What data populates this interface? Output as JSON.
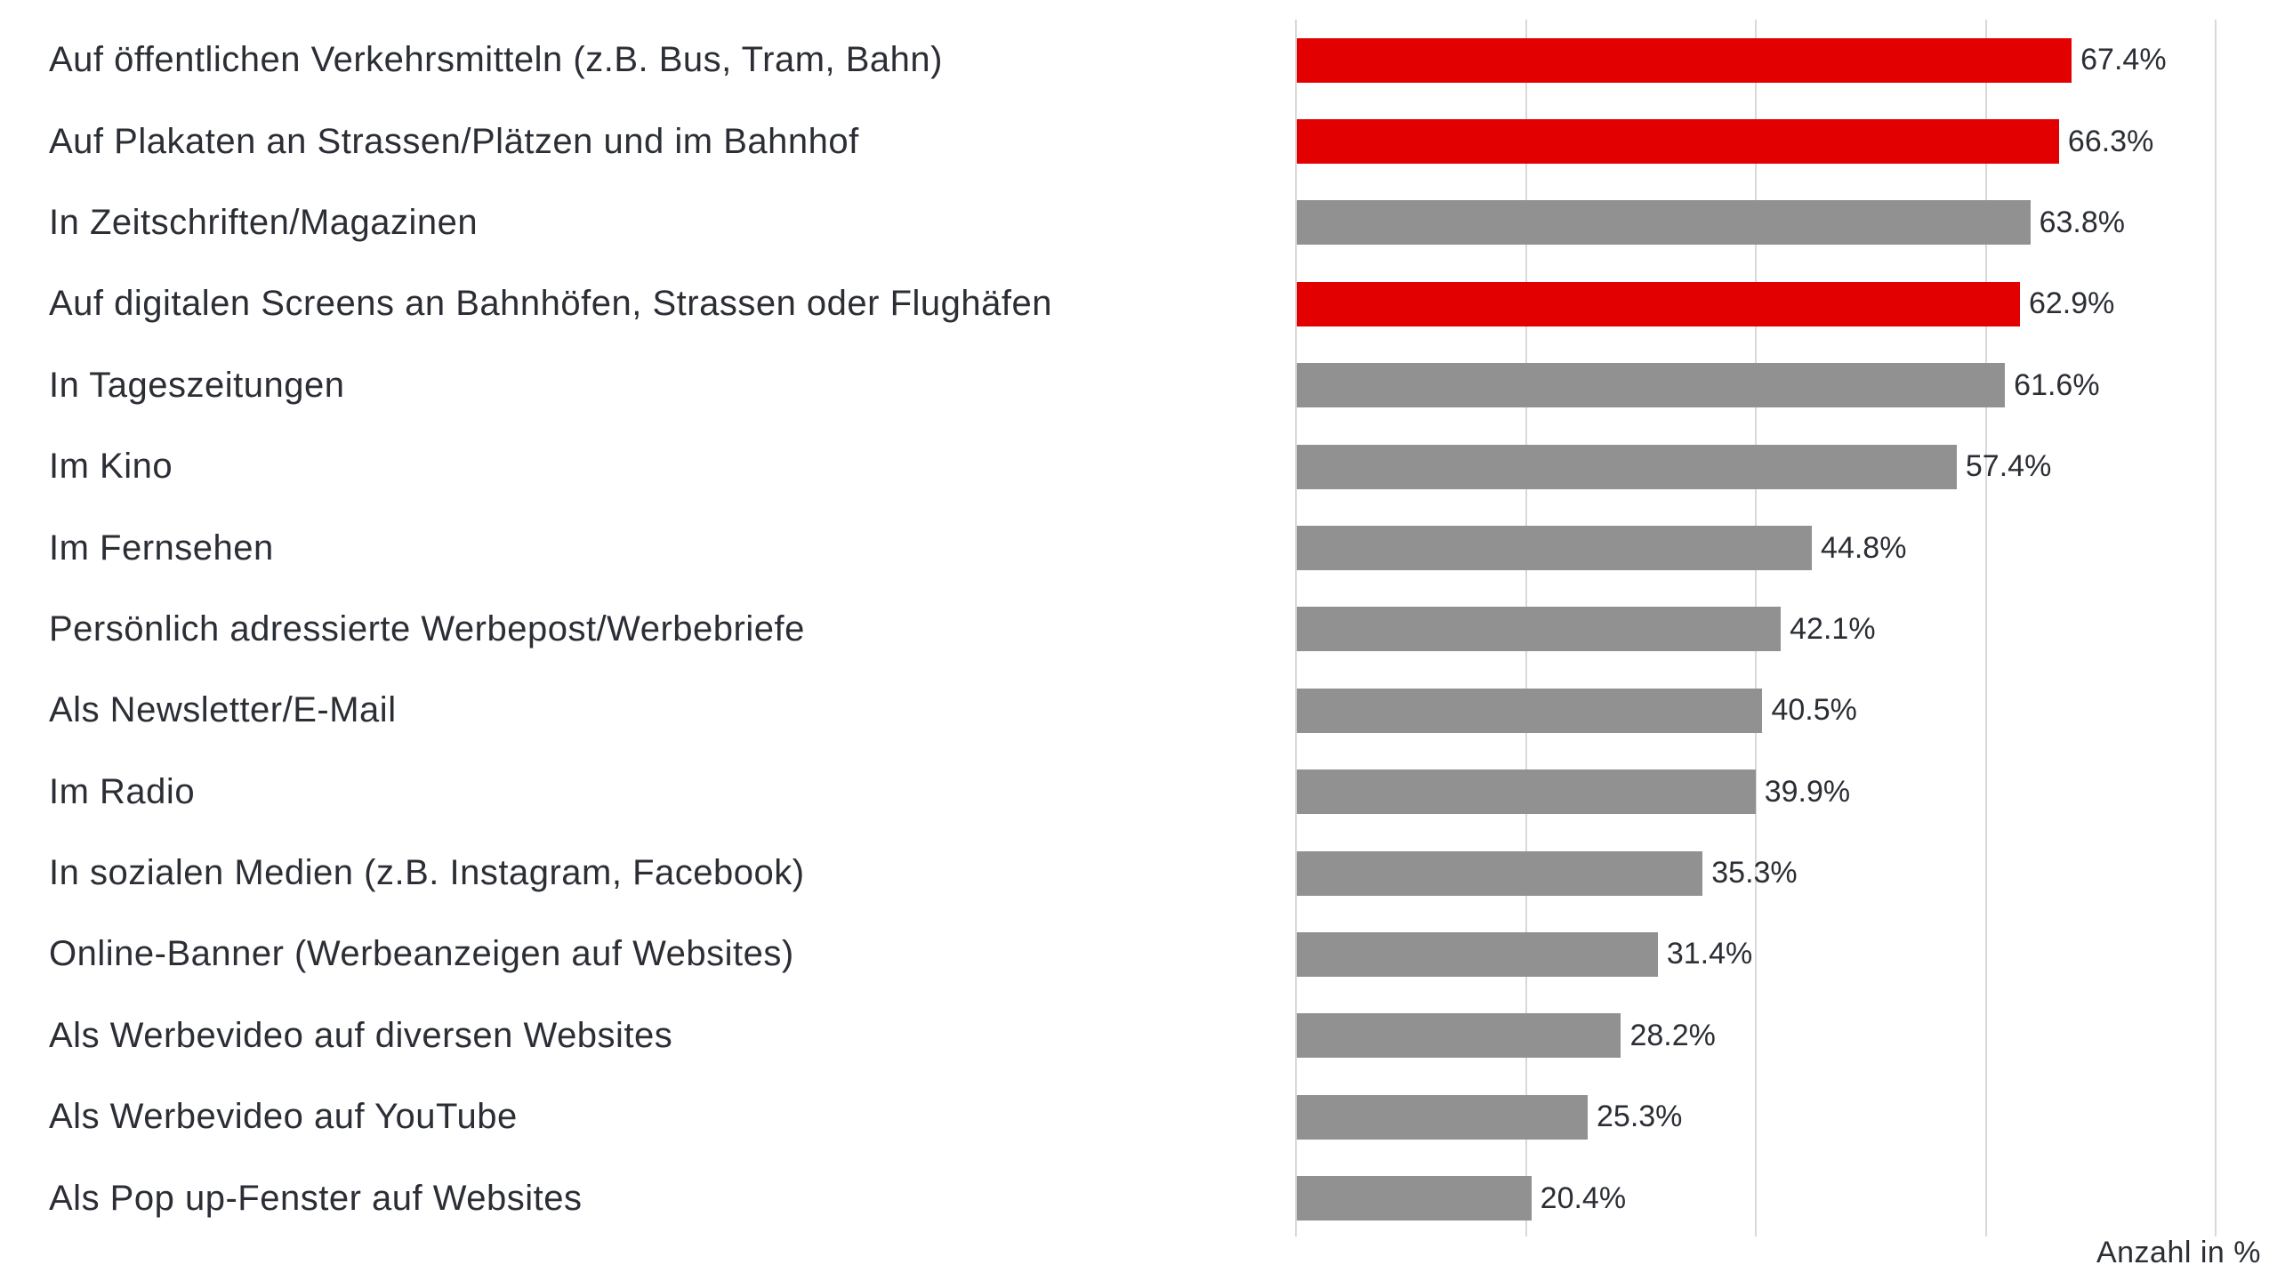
{
  "chart_data": {
    "type": "bar",
    "orientation": "horizontal",
    "title": "",
    "xlabel": "Anzahl in %",
    "ylabel": "",
    "xlim": [
      0,
      80
    ],
    "gridline_step": 20,
    "gridlines_at": [
      0,
      20,
      40,
      60,
      80
    ],
    "grid": "vertical-only",
    "legend": "none",
    "categories": [
      "Auf öffentlichen Verkehrsmitteln (z.B. Bus, Tram, Bahn)",
      "Auf Plakaten an Strassen/Plätzen und im Bahnhof",
      "In Zeitschriften/Magazinen",
      "Auf digitalen Screens an Bahnhöfen, Strassen oder Flughäfen",
      "In Tageszeitungen",
      "Im Kino",
      "Im Fernsehen",
      "Persönlich adressierte Werbepost/Werbebriefe",
      "Als Newsletter/E-Mail",
      "Im Radio",
      "In sozialen Medien (z.B. Instagram, Facebook)",
      "Online-Banner (Werbeanzeigen auf Websites)",
      "Als Werbevideo auf diversen Websites",
      "Als Werbevideo auf YouTube",
      "Als Pop up-Fenster auf Websites"
    ],
    "values": [
      67.4,
      66.3,
      63.8,
      62.9,
      61.6,
      57.4,
      44.8,
      42.1,
      40.5,
      39.9,
      35.3,
      31.4,
      28.2,
      25.3,
      20.4
    ],
    "value_labels": [
      "67.4%",
      "66.3%",
      "63.8%",
      "62.9%",
      "61.6%",
      "57.4%",
      "44.8%",
      "42.1%",
      "40.5%",
      "39.9%",
      "35.3%",
      "31.4%",
      "28.2%",
      "25.3%",
      "20.4%"
    ],
    "highlighted": [
      true,
      true,
      false,
      true,
      false,
      false,
      false,
      false,
      false,
      false,
      false,
      false,
      false,
      false,
      false
    ],
    "colors": {
      "highlight_bar": "#e20000",
      "default_bar": "#919191",
      "gridline": "#d9d9d9",
      "text": "#2b2e35",
      "background": "#ffffff"
    }
  }
}
